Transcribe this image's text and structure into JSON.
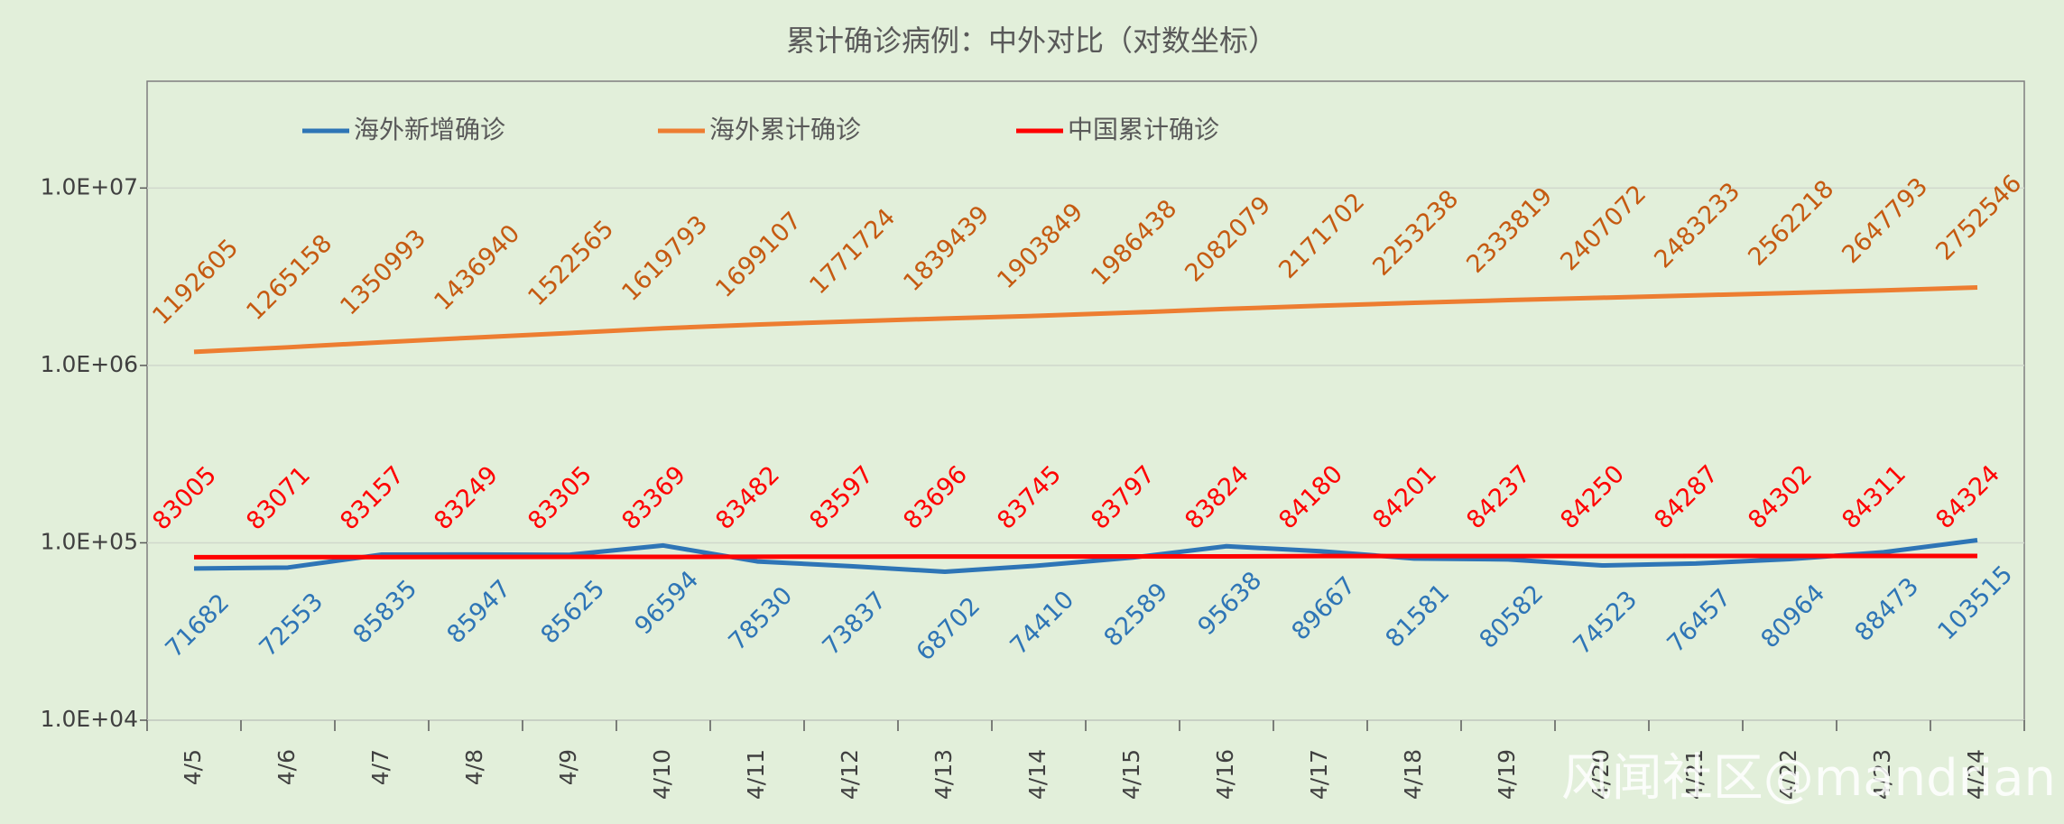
{
  "chart_data": {
    "type": "line",
    "title": "累计确诊病例：中外对比（对数坐标）",
    "categories": [
      "4/5",
      "4/6",
      "4/7",
      "4/8",
      "4/9",
      "4/10",
      "4/11",
      "4/12",
      "4/13",
      "4/14",
      "4/15",
      "4/16",
      "4/17",
      "4/18",
      "4/19",
      "4/20",
      "4/21",
      "4/22",
      "4/23",
      "4/24"
    ],
    "series": [
      {
        "name": "海外新增确诊",
        "color": "#2e75b6",
        "label_color": "#2e75b6",
        "label_side": "below",
        "values": [
          71682,
          72553,
          85835,
          85947,
          85625,
          96594,
          78530,
          73837,
          68702,
          74410,
          82589,
          95638,
          89667,
          81581,
          80582,
          74523,
          76457,
          80964,
          88473,
          103515
        ]
      },
      {
        "name": "海外累计确诊",
        "color": "#ed7d31",
        "label_color": "#c55a11",
        "label_side": "above",
        "values": [
          1192605,
          1265158,
          1350993,
          1436940,
          1522565,
          1619793,
          1699107,
          1771724,
          1839439,
          1903849,
          1986438,
          2082079,
          2171702,
          2253238,
          2333819,
          2407072,
          2483233,
          2562218,
          2647793,
          2752546
        ]
      },
      {
        "name": "中国累计确诊",
        "color": "#ff0000",
        "label_color": "#ff0000",
        "label_side": "above",
        "values": [
          83005,
          83071,
          83157,
          83249,
          83305,
          83369,
          83482,
          83597,
          83696,
          83745,
          83797,
          83824,
          84180,
          84201,
          84237,
          84250,
          84287,
          84302,
          84311,
          84324
        ]
      }
    ],
    "ylim": [
      10000,
      40000000
    ],
    "log_scale": true,
    "yticks": [
      {
        "value": 10000,
        "label": "1.0E+04"
      },
      {
        "value": 100000,
        "label": "1.0E+05"
      },
      {
        "value": 1000000,
        "label": "1.0E+06"
      },
      {
        "value": 10000000,
        "label": "1.0E+07"
      }
    ],
    "grid": true,
    "legend": "top",
    "watermark": "风闻社区@mandrian"
  }
}
